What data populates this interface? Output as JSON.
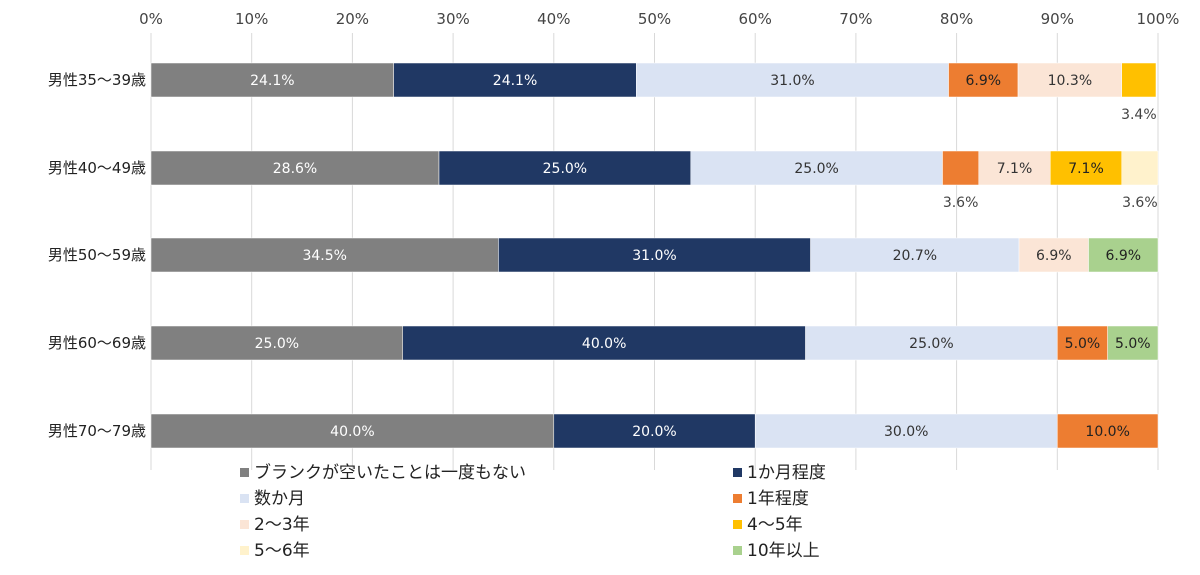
{
  "chart_data": {
    "type": "bar",
    "orientation": "horizontal",
    "stacked": true,
    "categories": [
      "男性35～39歳",
      "男性40～49歳",
      "男性50～59歳",
      "男性60～69歳",
      "男性70～79歳"
    ],
    "xlim": [
      0,
      100
    ],
    "x_ticks": [
      "0%",
      "10%",
      "20%",
      "30%",
      "40%",
      "50%",
      "60%",
      "70%",
      "80%",
      "90%",
      "100%"
    ],
    "grid": "vertical",
    "legend_position": "bottom",
    "series": [
      {
        "name": "ブランクが空いたことは一度もない",
        "color": "#808080",
        "label_color": "#ffffff",
        "values": [
          24.1,
          28.6,
          34.5,
          25.0,
          40.0
        ],
        "labels": [
          "24.1%",
          "28.6%",
          "34.5%",
          "25.0%",
          "40.0%"
        ]
      },
      {
        "name": "1か月程度",
        "color": "#203864",
        "label_color": "#ffffff",
        "values": [
          24.1,
          25.0,
          31.0,
          40.0,
          20.0
        ],
        "labels": [
          "24.1%",
          "25.0%",
          "31.0%",
          "40.0%",
          "20.0%"
        ]
      },
      {
        "name": "数か月",
        "color": "#dae3f3",
        "label_color": "#333333",
        "values": [
          31.0,
          25.0,
          20.7,
          25.0,
          30.0
        ],
        "labels": [
          "31.0%",
          "25.0%",
          "20.7%",
          "25.0%",
          "30.0%"
        ]
      },
      {
        "name": "1年程度",
        "color": "#ed7d31",
        "label_color": "#222222",
        "values": [
          6.9,
          3.6,
          0,
          5.0,
          10.0
        ],
        "labels": [
          "6.9%",
          "3.6%",
          "",
          "5.0%",
          "10.0%"
        ]
      },
      {
        "name": "2～3年",
        "color": "#fbe5d6",
        "label_color": "#333333",
        "values": [
          10.3,
          7.1,
          6.9,
          0,
          0
        ],
        "labels": [
          "10.3%",
          "7.1%",
          "6.9%",
          "",
          ""
        ]
      },
      {
        "name": "4～5年",
        "color": "#ffc000",
        "label_color": "#222222",
        "values": [
          3.4,
          7.1,
          0,
          0,
          0
        ],
        "labels": [
          "3.4%",
          "7.1%",
          "",
          "",
          ""
        ]
      },
      {
        "name": "5～6年",
        "color": "#fff2cc",
        "label_color": "#333333",
        "values": [
          0,
          3.6,
          0,
          0,
          0
        ],
        "labels": [
          "",
          "3.6%",
          "",
          "",
          ""
        ]
      },
      {
        "name": "10年以上",
        "color": "#a9d18e",
        "label_color": "#222222",
        "values": [
          0,
          0,
          6.9,
          5.0,
          0
        ],
        "labels": [
          "",
          "",
          "6.9%",
          "5.0%",
          ""
        ]
      }
    ]
  }
}
